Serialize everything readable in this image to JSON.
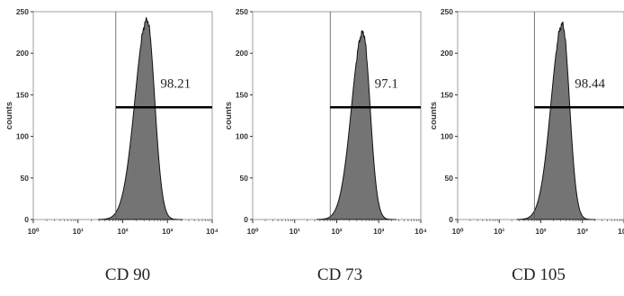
{
  "chart_data": [
    {
      "type": "histogram",
      "caption": "CD 90",
      "ylabel": "counts",
      "xscale": "log",
      "xlim": [
        1,
        10000
      ],
      "ylim": [
        0,
        250
      ],
      "xticks": [
        "10⁰",
        "10¹",
        "10²",
        "10³",
        "10⁴"
      ],
      "yticks": [
        "0",
        "50",
        "100",
        "150",
        "200",
        "250"
      ],
      "gate": {
        "start": 70,
        "end": 10000,
        "label": "98.21"
      },
      "peak": {
        "center": 350,
        "height": 240
      }
    },
    {
      "type": "histogram",
      "caption": "CD 73",
      "ylabel": "counts",
      "xscale": "log",
      "xlim": [
        1,
        10000
      ],
      "ylim": [
        0,
        250
      ],
      "xticks": [
        "10⁰",
        "10¹",
        "10²",
        "10³",
        "10⁴"
      ],
      "yticks": [
        "0",
        "50",
        "100",
        "150",
        "200",
        "250"
      ],
      "gate": {
        "start": 70,
        "end": 10000,
        "label": "97.1"
      },
      "peak": {
        "center": 420,
        "height": 225
      }
    },
    {
      "type": "histogram",
      "caption": "CD 105",
      "ylabel": "counts",
      "xscale": "log",
      "xlim": [
        1,
        10000
      ],
      "ylim": [
        0,
        250
      ],
      "xticks": [
        "10⁰",
        "10¹",
        "10²",
        "10³",
        "10⁴"
      ],
      "yticks": [
        "0",
        "50",
        "100",
        "150",
        "200",
        "250"
      ],
      "gate": {
        "start": 70,
        "end": 10000,
        "label": "98.44"
      },
      "peak": {
        "center": 330,
        "height": 235
      }
    }
  ]
}
